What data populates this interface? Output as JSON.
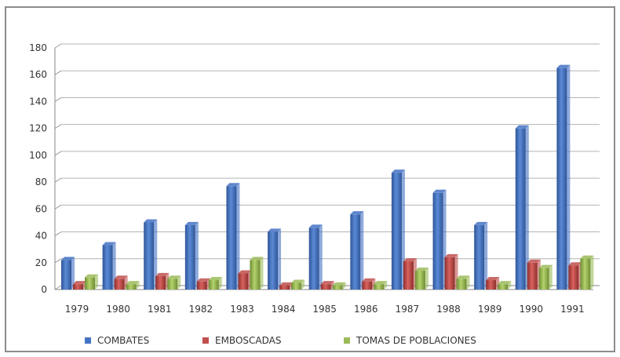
{
  "chart_data": {
    "type": "bar",
    "categories": [
      "1979",
      "1980",
      "1981",
      "1982",
      "1983",
      "1984",
      "1985",
      "1986",
      "1987",
      "1988",
      "1989",
      "1990",
      "1991"
    ],
    "series": [
      {
        "name": "COMBATES",
        "color": "#4472c4",
        "values": [
          22,
          33,
          50,
          48,
          77,
          43,
          46,
          56,
          87,
          72,
          48,
          120,
          165
        ]
      },
      {
        "name": "EMBOSCADAS",
        "color": "#c0504d",
        "values": [
          4,
          8,
          10,
          6,
          12,
          3,
          4,
          6,
          21,
          24,
          7,
          20,
          18
        ]
      },
      {
        "name": "TOMAS DE POBLACIONES",
        "color": "#9bbb59",
        "values": [
          9,
          4,
          8,
          7,
          22,
          5,
          3,
          4,
          14,
          8,
          4,
          16,
          23
        ]
      }
    ],
    "y_ticks": [
      "0",
      "20",
      "40",
      "60",
      "80",
      "100",
      "120",
      "140",
      "160",
      "180"
    ],
    "ylim": [
      0,
      180
    ],
    "grid": true,
    "legend_position": "bottom"
  }
}
